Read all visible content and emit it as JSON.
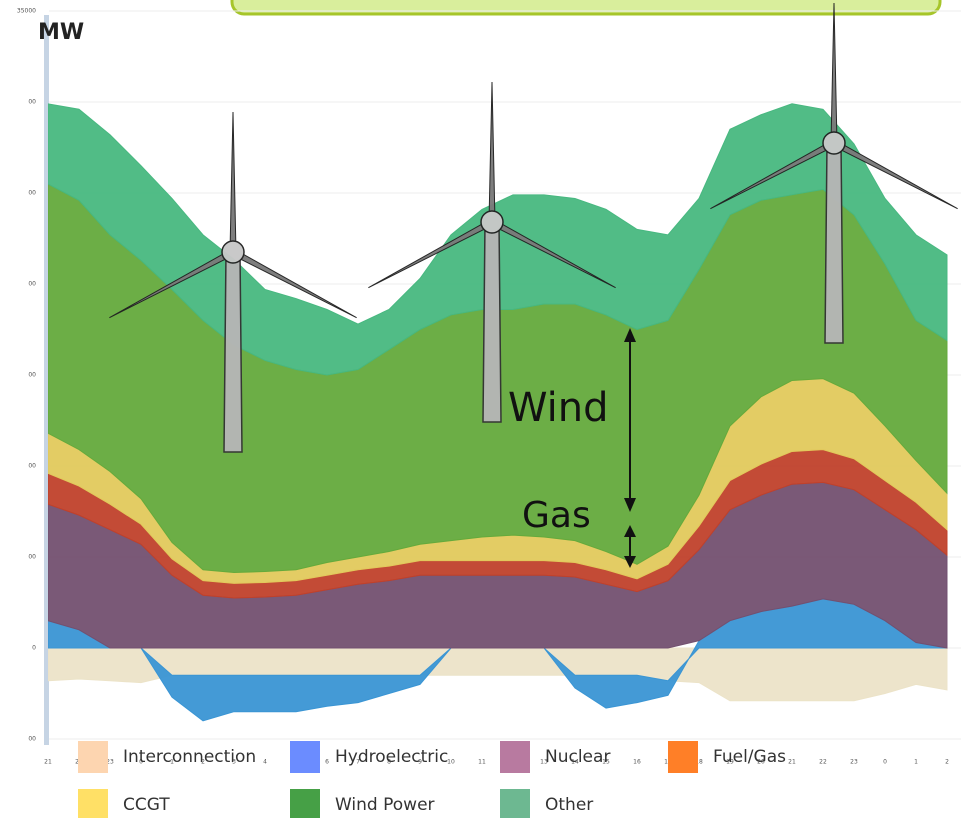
{
  "chart_data": {
    "type": "area",
    "y_label": "MW",
    "annotations": [
      "Wind",
      "Gas"
    ],
    "categories": [
      "21",
      "22",
      "23",
      "0",
      "1",
      "2",
      "3",
      "4",
      "5",
      "6",
      "7",
      "8",
      "9",
      "10",
      "11",
      "12",
      "13",
      "14",
      "15",
      "16",
      "17",
      "18",
      "19",
      "20",
      "21",
      "22",
      "23",
      "0",
      "1",
      "2"
    ],
    "ylim": [
      -5000,
      35000
    ],
    "yticks": [
      {
        "value": -5000,
        "label": "00"
      },
      0,
      {
        "value": 5000,
        "label": "00"
      },
      {
        "value": 10000,
        "label": "00"
      },
      {
        "value": 15000,
        "label": "00"
      },
      {
        "value": 20000,
        "label": "00"
      },
      {
        "value": 25000,
        "label": "00"
      },
      {
        "value": 30000,
        "label": "00"
      },
      35000
    ],
    "grid": true,
    "stacked": true,
    "series": [
      {
        "name": "Interconnection",
        "color": "#fdd5b0",
        "fill": "#ece3c8",
        "values": [
          -1800,
          -1700,
          -1800,
          -1900,
          -1500,
          -1500,
          -1500,
          -1500,
          -1500,
          -1500,
          -1500,
          -1500,
          -1500,
          -1500,
          -1500,
          -1500,
          -1500,
          -1500,
          -1500,
          -1500,
          -1800,
          -1900,
          -2900,
          -2900,
          -2900,
          -2900,
          -2900,
          -2500,
          -2000,
          -2300
        ]
      },
      {
        "name": "Hydroelectric",
        "color": "#6b8cff",
        "fill": "#3a95d4",
        "values": [
          1500,
          1000,
          0,
          0,
          -1200,
          -2500,
          -2000,
          -2000,
          -2000,
          -1700,
          -1500,
          -1000,
          -500,
          0,
          0,
          0,
          0,
          -700,
          -1800,
          -1500,
          -800,
          400,
          1500,
          2000,
          2300,
          2700,
          2400,
          1500,
          300,
          0
        ]
      },
      {
        "name": "Nuclear",
        "color": "#b87aa0",
        "fill": "#735070",
        "values": [
          6400,
          6300,
          6500,
          5700,
          4000,
          2900,
          2750,
          2800,
          2900,
          3200,
          3500,
          3700,
          4000,
          4000,
          4000,
          4000,
          4000,
          3900,
          3500,
          3100,
          3700,
          5000,
          6100,
          6400,
          6700,
          6400,
          6300,
          6100,
          6200,
          5100
        ]
      },
      {
        "name": "Fuel/Gas",
        "color": "#ff7f27",
        "fill": "#c0412b",
        "values": [
          1700,
          1600,
          1400,
          1100,
          900,
          800,
          800,
          800,
          800,
          800,
          800,
          800,
          800,
          800,
          800,
          800,
          800,
          800,
          800,
          700,
          900,
          1300,
          1600,
          1700,
          1800,
          1800,
          1700,
          1600,
          1500,
          1400
        ]
      },
      {
        "name": "CCGT",
        "color": "#ffe066",
        "fill": "#e2c95c",
        "values": [
          2200,
          2000,
          1800,
          1400,
          900,
          600,
          600,
          600,
          600,
          700,
          700,
          800,
          900,
          1100,
          1300,
          1400,
          1300,
          1200,
          1000,
          800,
          1000,
          1700,
          3000,
          3700,
          3900,
          3900,
          3600,
          3000,
          2300,
          2000
        ]
      },
      {
        "name": "Wind Power",
        "color": "#46a046",
        "fill": "#64aa3c",
        "values": [
          13700,
          13700,
          13000,
          13100,
          13900,
          13700,
          12500,
          11600,
          11000,
          10300,
          10300,
          11100,
          11800,
          12400,
          12500,
          12400,
          12800,
          13000,
          13000,
          12900,
          12400,
          12400,
          11600,
          10800,
          10200,
          10400,
          9800,
          8900,
          7700,
          8400
        ]
      },
      {
        "name": "Other",
        "color": "#6db891",
        "fill": "#48b880",
        "values": [
          4400,
          5000,
          5500,
          5200,
          5000,
          4700,
          4700,
          3900,
          3900,
          3600,
          2500,
          2200,
          2800,
          4400,
          5500,
          6300,
          6000,
          5800,
          5800,
          5500,
          4700,
          3900,
          4700,
          4700,
          5000,
          4400,
          3900,
          3600,
          4700,
          4700
        ]
      }
    ]
  }
}
